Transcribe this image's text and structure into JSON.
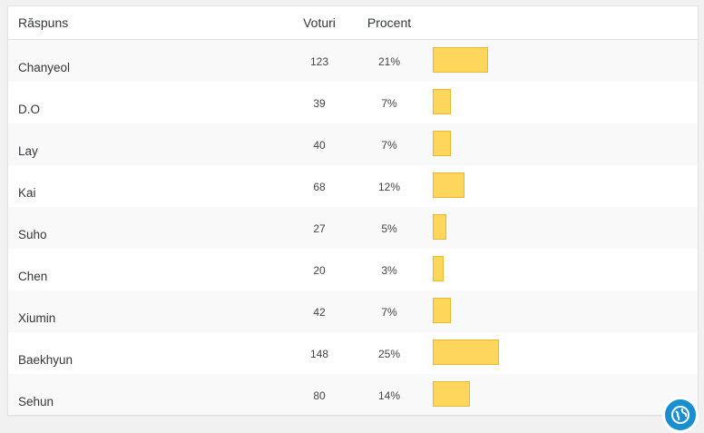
{
  "table": {
    "headers": {
      "answer": "Răspuns",
      "votes": "Voturi",
      "percent": "Procent"
    },
    "rows": [
      {
        "answer": "Chanyeol",
        "votes": "123",
        "percent": "21%",
        "fraction": 0.21
      },
      {
        "answer": "D.O",
        "votes": "39",
        "percent": "7%",
        "fraction": 0.07
      },
      {
        "answer": "Lay",
        "votes": "40",
        "percent": "7%",
        "fraction": 0.07
      },
      {
        "answer": "Kai",
        "votes": "68",
        "percent": "12%",
        "fraction": 0.12
      },
      {
        "answer": "Suho",
        "votes": "27",
        "percent": "5%",
        "fraction": 0.05
      },
      {
        "answer": "Chen",
        "votes": "20",
        "percent": "3%",
        "fraction": 0.03
      },
      {
        "answer": "Xiumin",
        "votes": "42",
        "percent": "7%",
        "fraction": 0.07
      },
      {
        "answer": "Baekhyun",
        "votes": "148",
        "percent": "25%",
        "fraction": 0.25
      },
      {
        "answer": "Sehun",
        "votes": "80",
        "percent": "14%",
        "fraction": 0.14
      }
    ]
  },
  "colors": {
    "bar_fill": "#ffd65c",
    "bar_border": "#e8b832",
    "badge": "#1a8fcf"
  },
  "badge": {
    "icon": "globe-icon"
  }
}
